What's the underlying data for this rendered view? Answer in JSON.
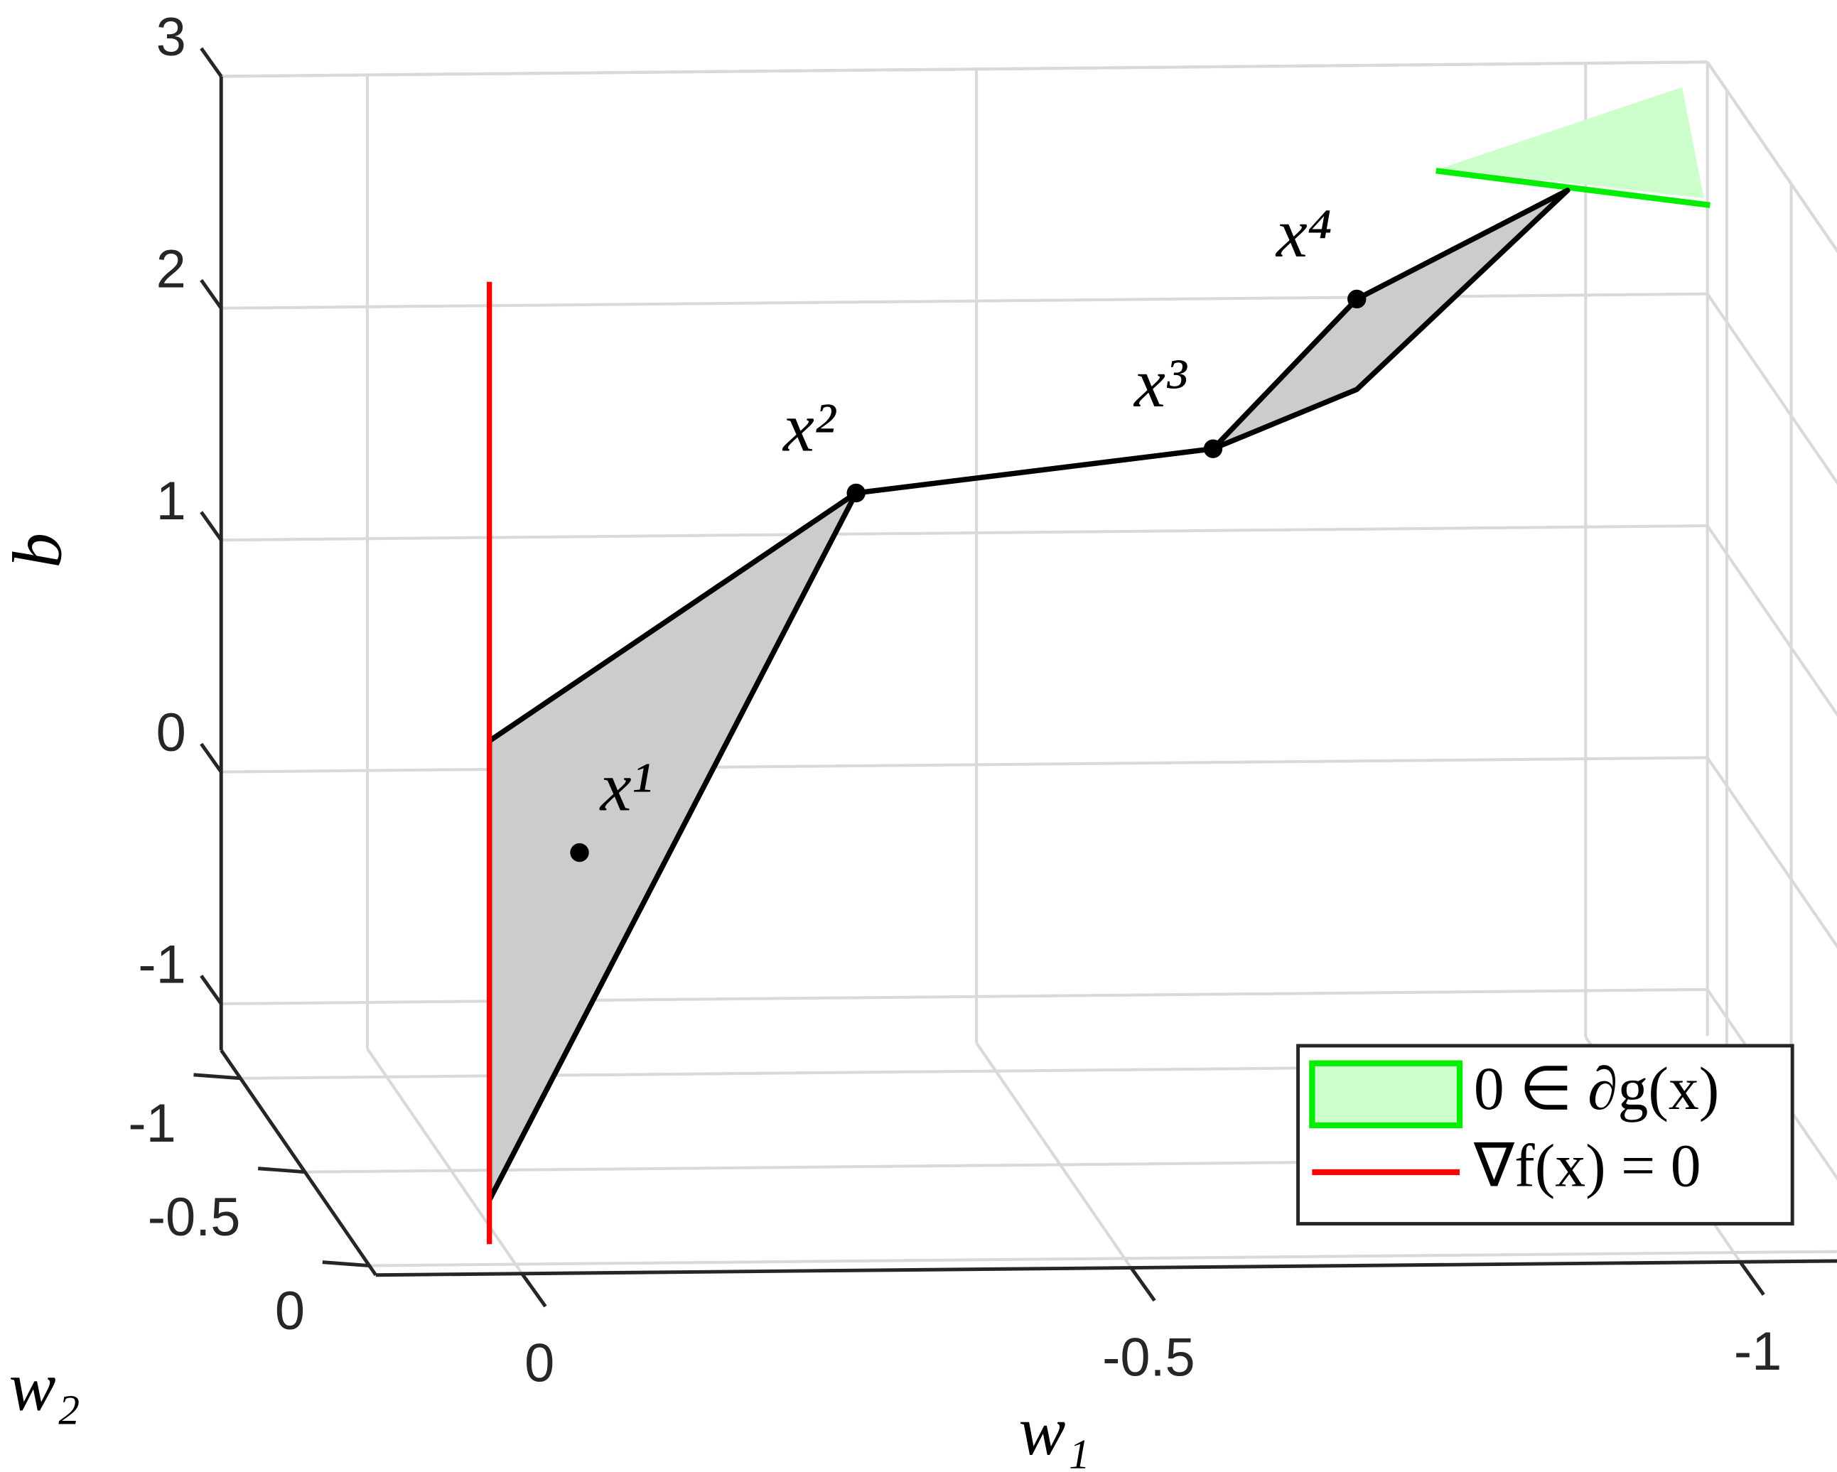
{
  "chart_data": {
    "type": "polyhedral3d",
    "xlabel": "w₁",
    "ylabel": "w₂",
    "zlabel": "b",
    "xlim": [
      -1.1,
      0.12
    ],
    "ylim": [
      -1.15,
      0.05
    ],
    "zlim": [
      -1.2,
      3
    ],
    "xticks": [
      0,
      -0.5,
      -1
    ],
    "yticks": [
      0,
      -0.5,
      -1
    ],
    "zticks": [
      -1,
      0,
      1,
      2,
      3
    ],
    "grid": true,
    "legend": "southeast",
    "regions": [
      {
        "color": "#cccccc",
        "edge_color": "#000000",
        "w1": [
          -0.042,
          -0.343,
          -0.042
        ],
        "w2": [
          -0.6,
          -0.6,
          -0.6
        ],
        "b": [
          0.57,
          1.624,
          -1.41
        ]
      },
      {
        "color": "#cccccc",
        "edge_color": "#000000",
        "w1": [
          -0.636,
          -0.754,
          -0.927,
          -0.754
        ],
        "w2": [
          -0.6,
          -0.6,
          -0.6,
          -0.6
        ],
        "b": [
          1.8,
          2.44,
          2.9,
          2.05
        ]
      }
    ],
    "path": {
      "color": "#000000",
      "w1": [
        -0.343,
        -0.636
      ],
      "w2": [
        -0.6,
        -0.6
      ],
      "b": [
        1.624,
        1.8
      ]
    },
    "series": [
      {
        "name": "0 ∈ ∂g(x)",
        "color": "#ccffcc",
        "edge_color": "#00ee00",
        "w1": [
          -0.823,
          -1.021,
          -1.039
        ],
        "w2": [
          -0.6,
          -0.6,
          -0.6
        ],
        "b": [
          3.0,
          3.34,
          2.86
        ]
      },
      {
        "name": "∇f(x) = 0",
        "color": "#ff0000",
        "w1": [
          -0.042,
          -0.042
        ],
        "w2": [
          -0.6,
          -0.6
        ],
        "b": [
          -1.6,
          2.55
        ]
      }
    ],
    "boundary": {
      "color": "#00ee00",
      "w1": [
        -0.819,
        -1.044
      ],
      "w2": [
        -0.6,
        -0.6
      ],
      "b": [
        2.99,
        2.83
      ]
    },
    "points": {
      "labels": [
        "x¹",
        "x²",
        "x³",
        "x⁴"
      ],
      "w1": [
        -0.116,
        -0.343,
        -0.636,
        -0.754
      ],
      "w2": [
        -0.6,
        -0.6,
        -0.6,
        -0.6
      ],
      "b": [
        0.085,
        1.624,
        1.8,
        2.44
      ]
    }
  }
}
